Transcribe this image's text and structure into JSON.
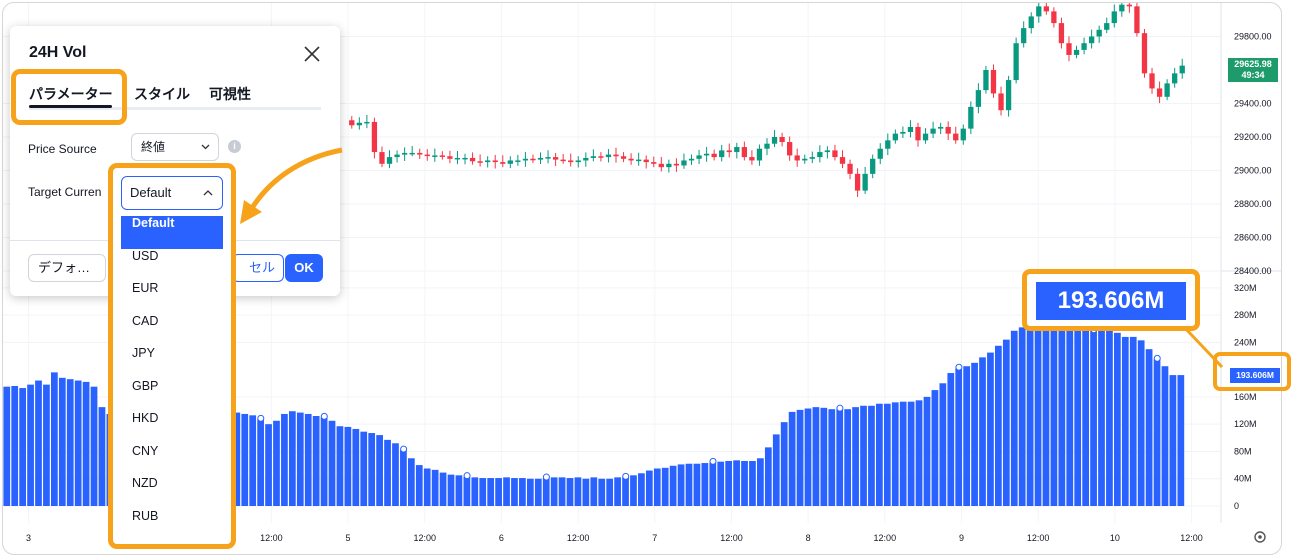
{
  "dialog": {
    "title": "24H Vol",
    "tabs": [
      {
        "label": "パラメーター"
      },
      {
        "label": "スタイル"
      },
      {
        "label": "可視性"
      }
    ],
    "price_source": {
      "label": "Price Source",
      "value": "終値"
    },
    "target_currency": {
      "label": "Target Curren",
      "value": "Default"
    },
    "defaults_button": "デフォ…",
    "cancel_button": "セル",
    "ok_button": "OK",
    "currency_options": [
      "Default",
      "USD",
      "EUR",
      "CAD",
      "JPY",
      "GBP",
      "HKD",
      "CNY",
      "NZD",
      "RUB"
    ]
  },
  "chart_data": {
    "type": "candlestick+bar",
    "price_axis": {
      "labels": [
        "29800.00",
        "29400.00",
        "29200.00",
        "29000.00",
        "28800.00",
        "28600.00",
        "28400.00"
      ],
      "range": [
        28400,
        30000
      ]
    },
    "volume_axis": {
      "labels": [
        "320M",
        "280M",
        "240M",
        "160M",
        "120M",
        "80M",
        "40M",
        "0"
      ],
      "range": [
        0,
        330
      ]
    },
    "time_axis": {
      "labels": [
        {
          "text": "3",
          "x": 0.02
        },
        {
          "text": "12:00",
          "x": 0.21
        },
        {
          "text": "5",
          "x": 0.27
        },
        {
          "text": "12:00",
          "x": 0.33
        },
        {
          "text": "6",
          "x": 0.39
        },
        {
          "text": "12:00",
          "x": 0.45
        },
        {
          "text": "7",
          "x": 0.51
        },
        {
          "text": "12:00",
          "x": 0.57
        },
        {
          "text": "8",
          "x": 0.63
        },
        {
          "text": "12:00",
          "x": 0.69
        },
        {
          "text": "9",
          "x": 0.75
        },
        {
          "text": "12:00",
          "x": 0.81
        },
        {
          "text": "10",
          "x": 0.87
        },
        {
          "text": "12:00",
          "x": 0.93
        }
      ]
    },
    "last_price": "29625.98",
    "countdown": "49:34",
    "last_volume": "193.606M",
    "volume_series": [
      175,
      176,
      173,
      178,
      184,
      178,
      196,
      188,
      186,
      184,
      182,
      175,
      145,
      135,
      132,
      128,
      127,
      133,
      135,
      137,
      138,
      137,
      137,
      138,
      137,
      138,
      137,
      136,
      134,
      137,
      135,
      133,
      127,
      120,
      125,
      135,
      139,
      137,
      135,
      132,
      130,
      125,
      117,
      116,
      113,
      109,
      107,
      104,
      97,
      92,
      82,
      70,
      60,
      55,
      53,
      49,
      46,
      45,
      43,
      42,
      41,
      41,
      41,
      42,
      41,
      41,
      40,
      40,
      41,
      42,
      42,
      41,
      42,
      40,
      42,
      40,
      40,
      42,
      42,
      45,
      48,
      52,
      55,
      56,
      59,
      61,
      62,
      62,
      63,
      64,
      65,
      66,
      67,
      66,
      66,
      70,
      86,
      105,
      123,
      138,
      141,
      143,
      145,
      144,
      142,
      142,
      142,
      145,
      147,
      147,
      150,
      150,
      152,
      153,
      153,
      155,
      160,
      170,
      180,
      195,
      202,
      205,
      210,
      218,
      225,
      235,
      244,
      257,
      262,
      264,
      264,
      262,
      262,
      262,
      262,
      262,
      258,
      257,
      257,
      257,
      254,
      248,
      248,
      243,
      230,
      215,
      205,
      192,
      192
    ],
    "price_series": [
      {
        "o": 29300,
        "c": 29270
      },
      {
        "o": 29270,
        "c": 29285
      },
      {
        "o": 29285,
        "c": 29290
      },
      {
        "o": 29290,
        "c": 29110
      },
      {
        "o": 29110,
        "c": 29040
      },
      {
        "o": 29040,
        "c": 29080
      },
      {
        "o": 29080,
        "c": 29095
      },
      {
        "o": 29095,
        "c": 29105
      },
      {
        "o": 29105,
        "c": 29105
      },
      {
        "o": 29105,
        "c": 29095
      },
      {
        "o": 29095,
        "c": 29090
      },
      {
        "o": 29090,
        "c": 29090
      },
      {
        "o": 29090,
        "c": 29085
      },
      {
        "o": 29085,
        "c": 29070
      },
      {
        "o": 29070,
        "c": 29075
      },
      {
        "o": 29075,
        "c": 29075
      },
      {
        "o": 29075,
        "c": 29055
      },
      {
        "o": 29055,
        "c": 29050
      },
      {
        "o": 29050,
        "c": 29060
      },
      {
        "o": 29060,
        "c": 29050
      },
      {
        "o": 29050,
        "c": 29040
      },
      {
        "o": 29040,
        "c": 29060
      },
      {
        "o": 29060,
        "c": 29060
      },
      {
        "o": 29060,
        "c": 29070
      },
      {
        "o": 29070,
        "c": 29065
      },
      {
        "o": 29065,
        "c": 29075
      },
      {
        "o": 29075,
        "c": 29080
      },
      {
        "o": 29080,
        "c": 29065
      },
      {
        "o": 29065,
        "c": 29060
      },
      {
        "o": 29060,
        "c": 29050
      },
      {
        "o": 29050,
        "c": 29060
      },
      {
        "o": 29060,
        "c": 29075
      },
      {
        "o": 29075,
        "c": 29085
      },
      {
        "o": 29085,
        "c": 29080
      },
      {
        "o": 29080,
        "c": 29095
      },
      {
        "o": 29095,
        "c": 29085
      },
      {
        "o": 29085,
        "c": 29070
      },
      {
        "o": 29070,
        "c": 29060
      },
      {
        "o": 29060,
        "c": 29065
      },
      {
        "o": 29065,
        "c": 29050
      },
      {
        "o": 29050,
        "c": 29040
      },
      {
        "o": 29040,
        "c": 29020
      },
      {
        "o": 29020,
        "c": 29040
      },
      {
        "o": 29040,
        "c": 29030
      },
      {
        "o": 29030,
        "c": 29060
      },
      {
        "o": 29060,
        "c": 29070
      },
      {
        "o": 29070,
        "c": 29090
      },
      {
        "o": 29090,
        "c": 29100
      },
      {
        "o": 29100,
        "c": 29080
      },
      {
        "o": 29080,
        "c": 29120
      },
      {
        "o": 29120,
        "c": 29110
      },
      {
        "o": 29110,
        "c": 29140
      },
      {
        "o": 29140,
        "c": 29080
      },
      {
        "o": 29080,
        "c": 29060
      },
      {
        "o": 29060,
        "c": 29130
      },
      {
        "o": 29130,
        "c": 29160
      },
      {
        "o": 29160,
        "c": 29200
      },
      {
        "o": 29200,
        "c": 29170
      },
      {
        "o": 29170,
        "c": 29090
      },
      {
        "o": 29090,
        "c": 29060
      },
      {
        "o": 29060,
        "c": 29070
      },
      {
        "o": 29070,
        "c": 29080
      },
      {
        "o": 29080,
        "c": 29110
      },
      {
        "o": 29110,
        "c": 29120
      },
      {
        "o": 29120,
        "c": 29080
      },
      {
        "o": 29080,
        "c": 29040
      },
      {
        "o": 29040,
        "c": 28980
      },
      {
        "o": 28980,
        "c": 28880
      },
      {
        "o": 28880,
        "c": 28980
      },
      {
        "o": 28980,
        "c": 29070
      },
      {
        "o": 29070,
        "c": 29130
      },
      {
        "o": 29130,
        "c": 29180
      },
      {
        "o": 29180,
        "c": 29220
      },
      {
        "o": 29220,
        "c": 29230
      },
      {
        "o": 29230,
        "c": 29260
      },
      {
        "o": 29260,
        "c": 29180
      },
      {
        "o": 29180,
        "c": 29220
      },
      {
        "o": 29220,
        "c": 29250
      },
      {
        "o": 29250,
        "c": 29260
      },
      {
        "o": 29260,
        "c": 29220
      },
      {
        "o": 29220,
        "c": 29180
      },
      {
        "o": 29180,
        "c": 29250
      },
      {
        "o": 29250,
        "c": 29380
      },
      {
        "o": 29380,
        "c": 29480
      },
      {
        "o": 29480,
        "c": 29600
      },
      {
        "o": 29600,
        "c": 29460
      },
      {
        "o": 29460,
        "c": 29360
      },
      {
        "o": 29360,
        "c": 29540
      },
      {
        "o": 29540,
        "c": 29760
      },
      {
        "o": 29760,
        "c": 29850
      },
      {
        "o": 29850,
        "c": 29920
      },
      {
        "o": 29920,
        "c": 29980
      },
      {
        "o": 29980,
        "c": 29950
      },
      {
        "o": 29950,
        "c": 29880
      },
      {
        "o": 29880,
        "c": 29760
      },
      {
        "o": 29760,
        "c": 29690
      },
      {
        "o": 29690,
        "c": 29720
      },
      {
        "o": 29720,
        "c": 29760
      },
      {
        "o": 29760,
        "c": 29800
      },
      {
        "o": 29800,
        "c": 29840
      },
      {
        "o": 29840,
        "c": 29880
      },
      {
        "o": 29880,
        "c": 29950
      },
      {
        "o": 29950,
        "c": 29990
      },
      {
        "o": 29990,
        "c": 29980
      },
      {
        "o": 29980,
        "c": 29820
      },
      {
        "o": 29820,
        "c": 29580
      },
      {
        "o": 29580,
        "c": 29490
      },
      {
        "o": 29490,
        "c": 29440
      },
      {
        "o": 29440,
        "c": 29520
      },
      {
        "o": 29520,
        "c": 29580
      },
      {
        "o": 29580,
        "c": 29626
      }
    ],
    "colors": {
      "up": "#089981",
      "down": "#f23645",
      "volume": "#2962ff"
    }
  }
}
